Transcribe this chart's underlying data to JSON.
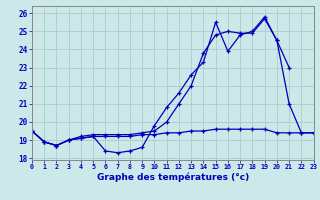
{
  "title": "Graphe des températures (°c)",
  "background_color": "#cce8e8",
  "grid_color": "#aacccc",
  "line_color": "#0000bb",
  "xlim": [
    0,
    23
  ],
  "ylim": [
    17.9,
    26.4
  ],
  "yticks": [
    18,
    19,
    20,
    21,
    22,
    23,
    24,
    25,
    26
  ],
  "xticks": [
    0,
    1,
    2,
    3,
    4,
    5,
    6,
    7,
    8,
    9,
    10,
    11,
    12,
    13,
    14,
    15,
    16,
    17,
    18,
    19,
    20,
    21,
    22,
    23
  ],
  "series1_x": [
    0,
    1,
    2,
    3,
    4,
    5,
    6,
    7,
    8,
    9,
    10,
    11,
    12,
    13,
    14,
    15,
    16,
    17,
    18,
    19,
    20,
    21
  ],
  "series1_y": [
    19.5,
    18.9,
    18.7,
    19.0,
    19.1,
    19.2,
    18.4,
    18.3,
    18.4,
    18.6,
    19.8,
    20.8,
    21.6,
    22.6,
    23.3,
    25.5,
    23.9,
    24.8,
    25.0,
    25.8,
    24.5,
    23.0
  ],
  "series2_x": [
    0,
    1,
    2,
    3,
    4,
    5,
    6,
    7,
    8,
    9,
    10,
    11,
    12,
    13,
    14,
    15,
    16,
    17,
    18,
    19,
    20,
    21,
    22,
    23
  ],
  "series2_y": [
    19.5,
    18.9,
    18.7,
    19.0,
    19.1,
    19.2,
    19.2,
    19.2,
    19.2,
    19.3,
    19.3,
    19.4,
    19.4,
    19.5,
    19.5,
    19.6,
    19.6,
    19.6,
    19.6,
    19.6,
    19.4,
    19.4,
    19.4,
    19.4
  ],
  "series3_x": [
    0,
    1,
    2,
    3,
    4,
    5,
    6,
    7,
    8,
    9,
    10,
    11,
    12,
    13,
    14,
    15,
    16,
    17,
    18,
    19,
    20,
    21,
    22,
    23
  ],
  "series3_y": [
    19.5,
    18.9,
    18.7,
    19.0,
    19.2,
    19.3,
    19.3,
    19.3,
    19.3,
    19.4,
    19.5,
    20.0,
    21.0,
    22.0,
    23.8,
    24.8,
    25.0,
    24.9,
    24.9,
    25.7,
    24.5,
    21.0,
    19.4,
    19.4
  ]
}
